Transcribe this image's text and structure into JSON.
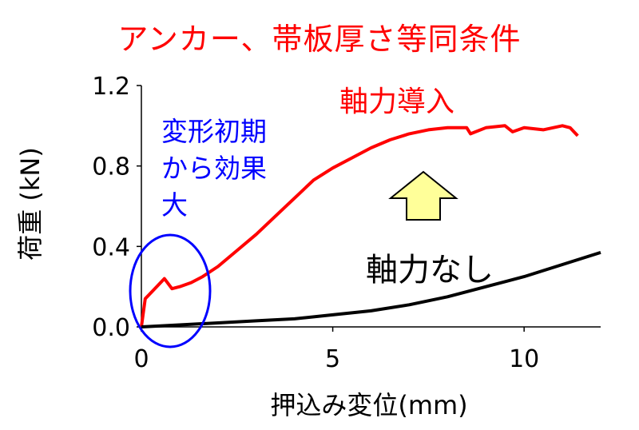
{
  "title": "アンカー、帯板厚さ等同条件",
  "annotations": {
    "axial_force": "軸力導入",
    "early_effect": [
      "変形初期",
      "から効果",
      "大"
    ],
    "no_axial": "軸力なし"
  },
  "colors": {
    "axial_series": "#ff0000",
    "no_axial_series": "#000000",
    "ellipse": "#0000ff",
    "arrow_fill": "#ffff99"
  },
  "chart_data": {
    "type": "line",
    "xlabel": "押込み変位(mm)",
    "ylabel": "荷重 (kN)",
    "xlim": [
      0,
      12
    ],
    "ylim": [
      0,
      1.2
    ],
    "xticks": [
      "0",
      "5",
      "10"
    ],
    "yticks": [
      "0.0",
      "0.4",
      "0.8",
      "1.2"
    ],
    "grid": false,
    "series": [
      {
        "color": "#ff0000",
        "x": [
          0,
          0.1,
          0.3,
          0.6,
          0.8,
          1.0,
          1.3,
          1.6,
          2.0,
          2.5,
          3.0,
          3.5,
          4.0,
          4.5,
          5.0,
          5.5,
          6.0,
          6.5,
          7.0,
          7.5,
          8.0,
          8.5,
          8.6,
          9.0,
          9.5,
          9.7,
          10.0,
          10.5,
          11.0,
          11.2,
          11.4
        ],
        "y": [
          0,
          0.14,
          0.18,
          0.24,
          0.19,
          0.2,
          0.22,
          0.25,
          0.3,
          0.38,
          0.46,
          0.55,
          0.64,
          0.73,
          0.79,
          0.84,
          0.89,
          0.93,
          0.96,
          0.98,
          0.99,
          0.99,
          0.96,
          0.99,
          1.0,
          0.97,
          0.99,
          0.98,
          1.0,
          0.99,
          0.95
        ]
      },
      {
        "color": "#000000",
        "x": [
          0,
          1,
          2,
          3,
          4,
          5,
          6,
          7,
          8,
          9,
          10,
          11,
          12
        ],
        "y": [
          0,
          0.01,
          0.02,
          0.03,
          0.04,
          0.06,
          0.08,
          0.11,
          0.15,
          0.2,
          0.25,
          0.31,
          0.37
        ]
      }
    ]
  }
}
